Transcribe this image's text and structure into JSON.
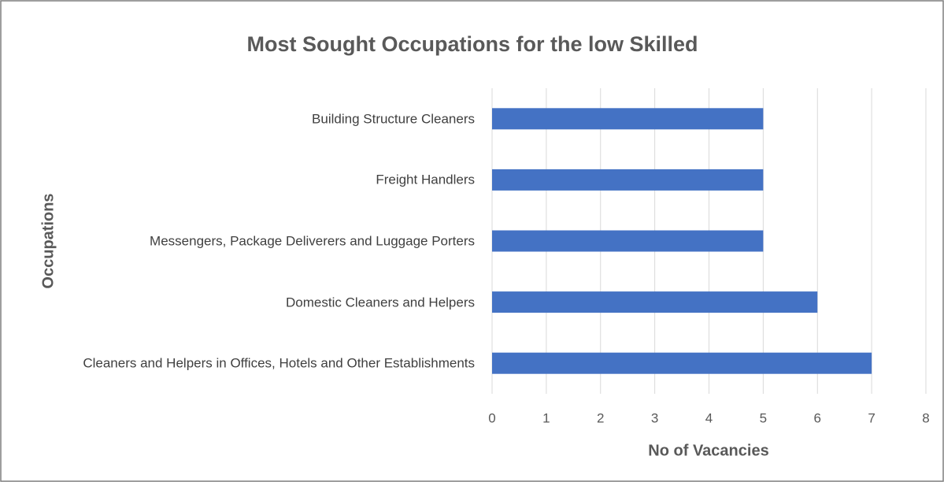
{
  "chart_data": {
    "type": "bar",
    "orientation": "horizontal",
    "title": "Most Sought Occupations for the low Skilled",
    "x_label": "No of Vacancies",
    "y_label": "Occupations",
    "categories": [
      "Cleaners and Helpers in Offices, Hotels and Other Establishments",
      "Domestic Cleaners and Helpers",
      "Messengers, Package Deliverers and Luggage Porters",
      "Freight Handlers",
      "Building Structure Cleaners"
    ],
    "values": [
      7,
      6,
      5,
      5,
      5
    ],
    "color": "#4472c4",
    "xlim": [
      0,
      8
    ],
    "xticks": [
      0,
      1,
      2,
      3,
      4,
      5,
      6,
      7,
      8
    ],
    "grid": true
  }
}
